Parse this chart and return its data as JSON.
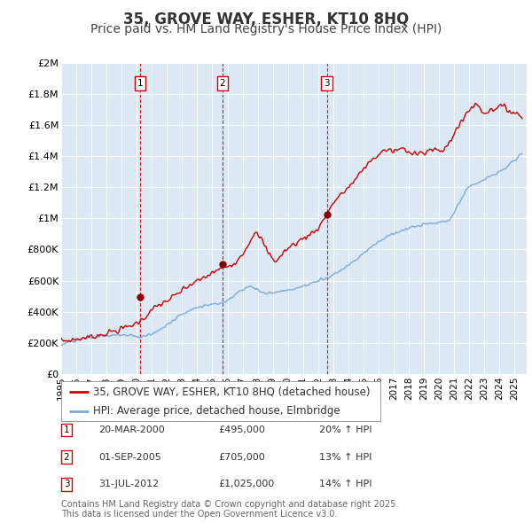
{
  "title": "35, GROVE WAY, ESHER, KT10 8HQ",
  "subtitle": "Price paid vs. HM Land Registry's House Price Index (HPI)",
  "plot_bg_color": "#dce9f5",
  "ylim": [
    0,
    2000000
  ],
  "yticks": [
    0,
    200000,
    400000,
    600000,
    800000,
    1000000,
    1200000,
    1400000,
    1600000,
    1800000,
    2000000
  ],
  "ytick_labels": [
    "£0",
    "£200K",
    "£400K",
    "£600K",
    "£800K",
    "£1M",
    "£1.2M",
    "£1.4M",
    "£1.6M",
    "£1.8M",
    "£2M"
  ],
  "xlim_start": 1995.0,
  "xlim_end": 2025.8,
  "red_line_color": "#cc0000",
  "blue_line_color": "#7aaadd",
  "vline_color": "#cc0000",
  "marker_color": "#880000",
  "purchases": [
    {
      "label": "1",
      "date_x": 2000.22,
      "price": 495000,
      "display_date": "20-MAR-2000",
      "pct": "20%"
    },
    {
      "label": "2",
      "date_x": 2005.67,
      "price": 705000,
      "display_date": "01-SEP-2005",
      "pct": "13%"
    },
    {
      "label": "3",
      "date_x": 2012.58,
      "price": 1025000,
      "display_date": "31-JUL-2012",
      "pct": "14%"
    }
  ],
  "legend_entries": [
    "35, GROVE WAY, ESHER, KT10 8HQ (detached house)",
    "HPI: Average price, detached house, Elmbridge"
  ],
  "footnote": "Contains HM Land Registry data © Crown copyright and database right 2025.\nThis data is licensed under the Open Government Licence v3.0.",
  "title_fontsize": 12,
  "subtitle_fontsize": 10,
  "tick_fontsize": 8,
  "legend_fontsize": 8.5,
  "footnote_fontsize": 7
}
